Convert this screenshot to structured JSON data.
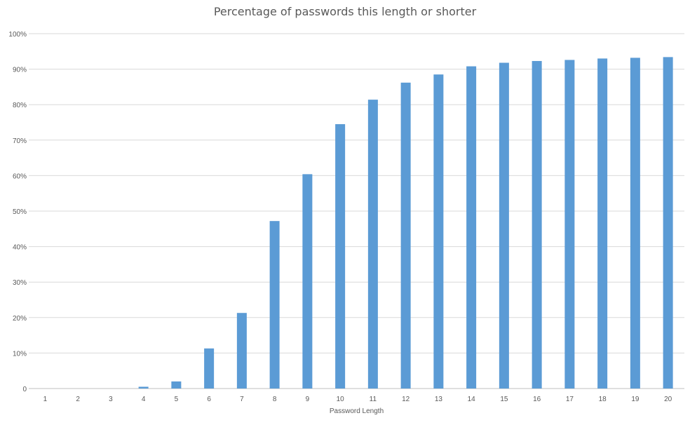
{
  "chart_data": {
    "type": "bar",
    "title": "Percentage of passwords this length or shorter",
    "xlabel": "Password Length",
    "ylabel": "",
    "categories": [
      "1",
      "2",
      "3",
      "4",
      "5",
      "6",
      "7",
      "8",
      "9",
      "10",
      "11",
      "12",
      "13",
      "14",
      "15",
      "16",
      "17",
      "18",
      "19",
      "20"
    ],
    "values": [
      0,
      0,
      0,
      0.5,
      2.0,
      11.3,
      21.3,
      47.2,
      60.4,
      74.5,
      81.4,
      86.2,
      88.5,
      90.8,
      91.8,
      92.3,
      92.6,
      93.0,
      93.2,
      93.4
    ],
    "ylim": [
      0,
      100
    ],
    "yticks": [
      "0",
      "10%",
      "20%",
      "30%",
      "40%",
      "50%",
      "60%",
      "70%",
      "80%",
      "90%",
      "100%"
    ],
    "grid": true,
    "legend": "none",
    "colors": {
      "bar": "#5B9BD5",
      "grid": "#D9D9D9",
      "axis": "#BFBFBF",
      "text": "#595959"
    }
  }
}
